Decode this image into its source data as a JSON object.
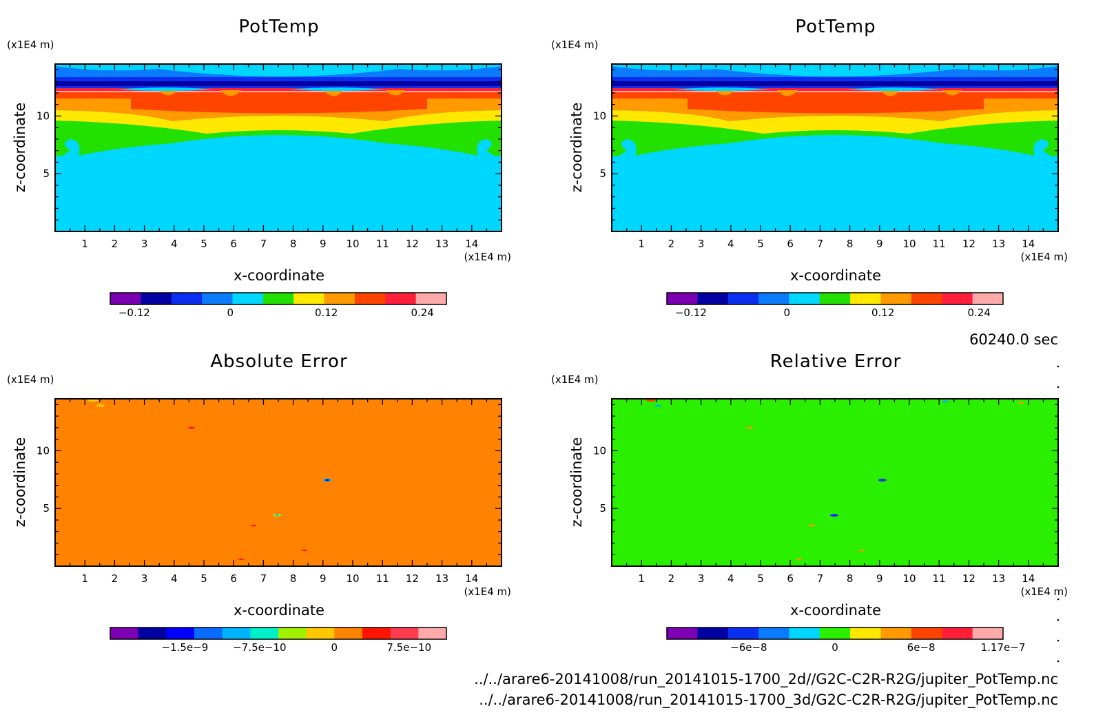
{
  "time_label": "60240.0 sec",
  "footer_lines": [
    "../../arare6-20141008/run_20141015-1700_2d//G2C-C2R-R2G/jupiter_PotTemp.nc",
    "../../arare6-20141008/run_20141015-1700_3d/G2C-C2R-R2G/jupiter_PotTemp.nc"
  ],
  "chart_data": [
    {
      "type": "heatmap",
      "title": "PotTemp",
      "xlabel": "x-coordinate",
      "ylabel": "z-coordinate",
      "x_unit": "(x1E4 m)",
      "y_unit": "(x1E4 m)",
      "x_ticks": [
        "1",
        "2",
        "3",
        "4",
        "5",
        "6",
        "7",
        "8",
        "9",
        "10",
        "11",
        "12",
        "13",
        "14"
      ],
      "y_ticks": [
        "5",
        "10"
      ],
      "colorbar": {
        "levels": [
          -0.15,
          -0.12,
          -0.09,
          -0.06,
          -0.03,
          0,
          0.03,
          0.06,
          0.09,
          0.12,
          0.15,
          0.18,
          0.21,
          0.24,
          0.27
        ],
        "colors": [
          "#7b00b4",
          "#0000a0",
          "#0a2ff0",
          "#0a7bff",
          "#00d7ff",
          "#22e000",
          "#ffe800",
          "#ff9a00",
          "#ff4400",
          "#ff1f38",
          "#ffaaaa"
        ],
        "label_values": [
          -0.12,
          0,
          0.12,
          0.24
        ],
        "labels": [
          "−0.12",
          "0",
          "0.12",
          "0.24"
        ]
      }
    },
    {
      "type": "heatmap",
      "title": "PotTemp",
      "xlabel": "x-coordinate",
      "ylabel": "z-coordinate",
      "x_unit": "(x1E4 m)",
      "y_unit": "(x1E4 m)",
      "x_ticks": [
        "1",
        "2",
        "3",
        "4",
        "5",
        "6",
        "7",
        "8",
        "9",
        "10",
        "11",
        "12",
        "13",
        "14"
      ],
      "y_ticks": [
        "5",
        "10"
      ],
      "colorbar": {
        "levels": [
          -0.15,
          -0.12,
          -0.09,
          -0.06,
          -0.03,
          0,
          0.03,
          0.06,
          0.09,
          0.12,
          0.15,
          0.18,
          0.21,
          0.24,
          0.27
        ],
        "colors": [
          "#7b00b4",
          "#0000a0",
          "#0a2ff0",
          "#0a7bff",
          "#00d7ff",
          "#22e000",
          "#ffe800",
          "#ff9a00",
          "#ff4400",
          "#ff1f38",
          "#ffaaaa"
        ],
        "label_values": [
          -0.12,
          0,
          0.12,
          0.24
        ],
        "labels": [
          "−0.12",
          "0",
          "0.12",
          "0.24"
        ]
      }
    },
    {
      "type": "heatmap",
      "title": "Absolute Error",
      "xlabel": "x-coordinate",
      "ylabel": "z-coordinate",
      "x_unit": "(x1E4 m)",
      "y_unit": "(x1E4 m)",
      "x_ticks": [
        "1",
        "2",
        "3",
        "4",
        "5",
        "6",
        "7",
        "8",
        "9",
        "10",
        "11",
        "12",
        "13",
        "14"
      ],
      "y_ticks": [
        "5",
        "10"
      ],
      "background_color": "#ff8200",
      "colorbar": {
        "levels": [
          -2.25e-09,
          -1.875e-09,
          -1.5e-09,
          -1.125e-09,
          -7.5e-10,
          -3.75e-10,
          0,
          3.75e-10,
          7.5e-10,
          1.125e-09
        ],
        "colors": [
          "#7b00b4",
          "#0000a0",
          "#0000ff",
          "#0a6bff",
          "#00b4ff",
          "#00f0c8",
          "#a0f000",
          "#ffc800",
          "#ff8200",
          "#ff1400",
          "#ff3c50",
          "#ffaaaa"
        ],
        "label_values": [
          -1.5e-09,
          -7.5e-10,
          0,
          7.5e-10
        ],
        "labels": [
          "−1.5e−9",
          "−7.5e−10",
          "0",
          "7.5e−10"
        ]
      }
    },
    {
      "type": "heatmap",
      "title": "Relative Error",
      "xlabel": "x-coordinate",
      "ylabel": "z-coordinate",
      "x_unit": "(x1E4 m)",
      "y_unit": "(x1E4 m)",
      "x_ticks": [
        "1",
        "2",
        "3",
        "4",
        "5",
        "6",
        "7",
        "8",
        "9",
        "10",
        "11",
        "12",
        "13",
        "14"
      ],
      "y_ticks": [
        "5",
        "10"
      ],
      "background_color": "#2af000",
      "colorbar": {
        "levels": [
          -1.17e-07,
          -9e-08,
          -6e-08,
          -3e-08,
          0,
          3e-08,
          6e-08,
          9e-08,
          1.17e-07
        ],
        "colors": [
          "#7b00b4",
          "#0000a0",
          "#0a2ff0",
          "#0a7bff",
          "#00d7ff",
          "#2af000",
          "#ffe800",
          "#ff9a00",
          "#ff4400",
          "#ff1f38",
          "#ffaaaa"
        ],
        "label_values": [
          -6e-08,
          0,
          6e-08,
          1.17e-07
        ],
        "labels": [
          "−6e−8",
          "0",
          "6e−8",
          "1.17e−7"
        ]
      }
    }
  ]
}
